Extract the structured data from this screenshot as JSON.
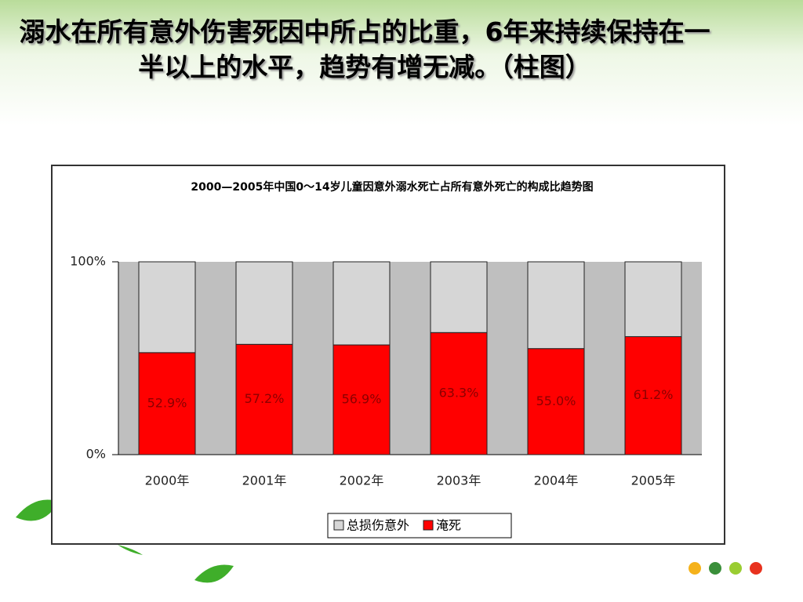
{
  "slide_title": "溺水在所有意外伤害死因中所占的比重，6年来持续保持在一半以上的水平，趋势有增无减。（柱图）",
  "chart_data": {
    "type": "stacked_bar",
    "title": "2000—2005年中国0～14岁儿童因意外溺水死亡占所有意外死亡的构成比趋势图",
    "categories": [
      "2000年",
      "2001年",
      "2002年",
      "2003年",
      "2004年",
      "2005年"
    ],
    "series": [
      {
        "name": "淹死",
        "color": "#ff0000",
        "values": [
          52.9,
          57.2,
          56.9,
          63.3,
          55.0,
          61.2
        ],
        "value_labels": [
          "52.9%",
          "57.2%",
          "56.9%",
          "63.3%",
          "55.0%",
          "61.2%"
        ]
      },
      {
        "name": "总损伤意外",
        "color": "#d6d6d6",
        "values": [
          47.1,
          42.8,
          43.1,
          36.7,
          45.0,
          38.8
        ]
      }
    ],
    "legend_order": [
      1,
      0
    ],
    "ylim": [
      0,
      100
    ],
    "yticks": [
      {
        "value": 0,
        "label": "0%"
      },
      {
        "value": 100,
        "label": "100%"
      }
    ],
    "plot_background": "#bfbfbf"
  }
}
